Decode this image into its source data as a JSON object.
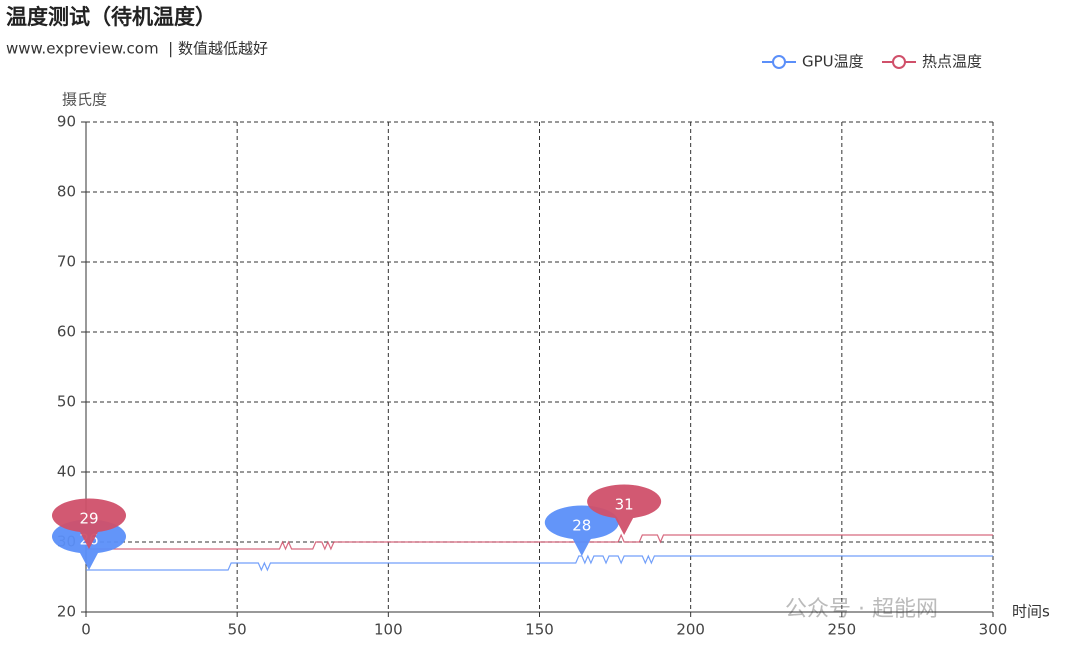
{
  "chart_data": {
    "type": "line",
    "title": "温度测试（待机温度）",
    "subtitle": "www.expreview.com  | 数值越低越好",
    "y_axis_label": "摄氏度",
    "x_axis_label": "时间s",
    "watermark": "公众号 · 超能网",
    "x": [
      0,
      47,
      48,
      57,
      58,
      59,
      60,
      61,
      64,
      65,
      66,
      67,
      68,
      75,
      76,
      78,
      79,
      80,
      81,
      82,
      162,
      163,
      164,
      165,
      166,
      167,
      168,
      171,
      172,
      173,
      176,
      177,
      178,
      183,
      184,
      185,
      186,
      187,
      188,
      189,
      190,
      191,
      300
    ],
    "series": [
      {
        "name": "GPU温度",
        "color": "#5b8ff9",
        "values": [
          26,
          26,
          27,
          27,
          26,
          27,
          26,
          27,
          27,
          27,
          27,
          27,
          27,
          27,
          27,
          27,
          27,
          27,
          27,
          27,
          27,
          28,
          28,
          27,
          28,
          27,
          28,
          28,
          27,
          28,
          28,
          27,
          28,
          28,
          28,
          27,
          28,
          27,
          28,
          28,
          28,
          28,
          28
        ],
        "markers": [
          {
            "x": 0,
            "y": 26
          },
          {
            "x": 163,
            "y": 28
          }
        ]
      },
      {
        "name": "热点温度",
        "color": "#d0506a",
        "values": [
          29,
          29,
          29,
          29,
          29,
          29,
          29,
          29,
          29,
          30,
          29,
          30,
          29,
          29,
          30,
          30,
          29,
          30,
          29,
          30,
          30,
          30,
          30,
          30,
          30,
          30,
          30,
          30,
          30,
          30,
          30,
          31,
          30,
          30,
          31,
          31,
          31,
          31,
          31,
          31,
          30,
          31,
          31
        ],
        "markers": [
          {
            "x": 0,
            "y": 29
          },
          {
            "x": 177,
            "y": 31
          }
        ]
      }
    ],
    "xlim": [
      0,
      300
    ],
    "xticks": [
      0,
      50,
      100,
      150,
      200,
      250,
      300
    ],
    "ylim": [
      20,
      90
    ],
    "yticks": [
      20,
      30,
      40,
      50,
      60,
      70,
      80,
      90
    ],
    "grid": true,
    "legend": "top-right"
  }
}
